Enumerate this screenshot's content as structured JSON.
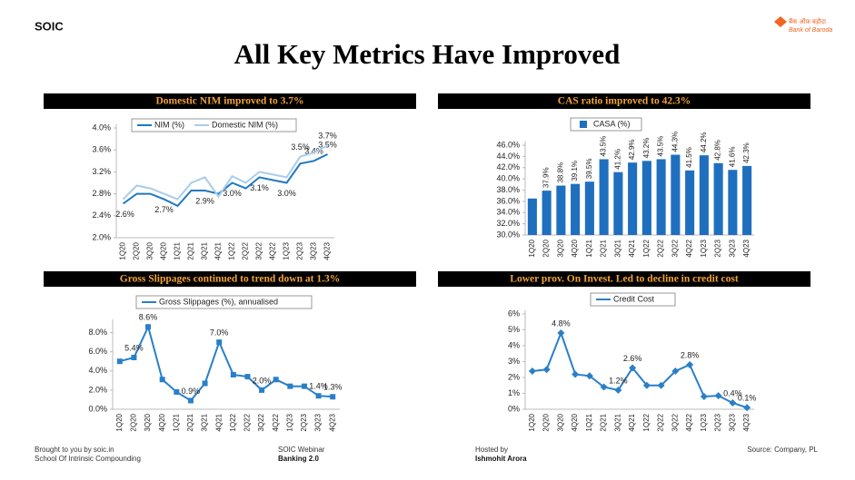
{
  "header": {
    "brand": "SOIC",
    "logo_hindi": "बैंक ऑफ़ बड़ौदा",
    "logo_name": "Bank of Baroda",
    "title": "All Key Metrics Have Improved"
  },
  "footer": {
    "left_1": "Brought to you by soic.in",
    "left_2": "School Of Intrinsic Compounding",
    "mid_1": "SOIC Webinar",
    "mid_2": "Banking 2.0",
    "host_1": "Hosted by",
    "host_2": "Ishmohit Arora",
    "source": "Source: Company, PL"
  },
  "chart_data": [
    {
      "type": "line",
      "title": "Domestic NIM improved to 3.7%",
      "categories": [
        "1Q20",
        "2Q20",
        "3Q20",
        "4Q20",
        "1Q21",
        "2Q21",
        "3Q21",
        "4Q21",
        "1Q22",
        "2Q22",
        "3Q22",
        "4Q22",
        "1Q23",
        "2Q23",
        "3Q23",
        "4Q23"
      ],
      "series": [
        {
          "name": "NIM (%)",
          "color": "#1f78c1",
          "values": [
            2.62,
            2.8,
            2.8,
            2.7,
            2.58,
            2.86,
            2.86,
            2.8,
            3.0,
            2.9,
            3.1,
            3.05,
            3.0,
            3.35,
            3.4,
            3.52
          ],
          "value_labels": [
            "2.6%",
            null,
            null,
            "2.7%",
            null,
            null,
            "2.9%",
            null,
            "3.0%",
            null,
            "3.1%",
            null,
            "3.0%",
            null,
            "3.4%",
            "3.5%"
          ]
        },
        {
          "name": "Domestic NIM (%)",
          "color": "#a9cdea",
          "values": [
            2.7,
            2.95,
            2.9,
            2.8,
            2.7,
            3.0,
            3.1,
            2.75,
            3.12,
            3.0,
            3.2,
            3.15,
            3.1,
            3.48,
            3.55,
            3.68
          ],
          "value_labels": [
            null,
            null,
            null,
            null,
            null,
            null,
            null,
            null,
            null,
            null,
            null,
            null,
            null,
            "3.5%",
            null,
            "3.7%"
          ]
        }
      ],
      "ylim": [
        2.0,
        4.0
      ],
      "yticks": [
        {
          "value": 2.0,
          "label": "2.0%"
        },
        {
          "value": 2.4,
          "label": "2.4%"
        },
        {
          "value": 2.8,
          "label": "2.8%"
        },
        {
          "value": 3.2,
          "label": "3.2%"
        },
        {
          "value": 3.6,
          "label": "3.6%"
        },
        {
          "value": 4.0,
          "label": "4.0%"
        }
      ]
    },
    {
      "type": "bar",
      "title": "CAS ratio improved to 42.3%",
      "categories": [
        "1Q20",
        "2Q20",
        "3Q20",
        "4Q20",
        "1Q21",
        "2Q21",
        "3Q21",
        "4Q21",
        "1Q22",
        "2Q22",
        "3Q22",
        "4Q22",
        "1Q23",
        "2Q23",
        "3Q23",
        "4Q23"
      ],
      "series": [
        {
          "name": "CASA (%)",
          "color": "#1f6fbf",
          "values": [
            36.5,
            37.9,
            38.8,
            39.1,
            39.5,
            43.5,
            41.2,
            42.9,
            43.2,
            43.5,
            44.3,
            41.5,
            44.2,
            42.8,
            41.6,
            42.3
          ],
          "value_labels": [
            null,
            "37.9%",
            "38.8%",
            "39.1%",
            "39.5%",
            "43.5%",
            "41.2%",
            "42.9%",
            "43.2%",
            "43.5%",
            "44.3%",
            "41.5%",
            "44.2%",
            "42.8%",
            "41.6%",
            "42.3%"
          ]
        }
      ],
      "ylim": [
        30,
        46
      ],
      "yticks": [
        {
          "value": 30,
          "label": "30.0%"
        },
        {
          "value": 32,
          "label": "32.0%"
        },
        {
          "value": 34,
          "label": "34.0%"
        },
        {
          "value": 36,
          "label": "36.0%"
        },
        {
          "value": 38,
          "label": "38.0%"
        },
        {
          "value": 40,
          "label": "40.0%"
        },
        {
          "value": 42,
          "label": "42.0%"
        },
        {
          "value": 44,
          "label": "44.0%"
        },
        {
          "value": 46,
          "label": "46.0%"
        }
      ]
    },
    {
      "type": "line",
      "title": "Gross Slippages continued to trend down at 1.3%",
      "categories": [
        "1Q20",
        "2Q20",
        "3Q20",
        "4Q20",
        "1Q21",
        "2Q21",
        "3Q21",
        "4Q21",
        "1Q22",
        "2Q22",
        "3Q22",
        "4Q22",
        "1Q23",
        "2Q23",
        "3Q23",
        "4Q23"
      ],
      "series": [
        {
          "name": "Gross Slippages (%), annualised",
          "color": "#2a7fc9",
          "marker": "square",
          "values": [
            5.0,
            5.4,
            8.6,
            3.1,
            1.8,
            0.9,
            2.7,
            7.0,
            3.6,
            3.4,
            2.0,
            3.1,
            2.4,
            2.4,
            1.4,
            1.3
          ],
          "value_labels": [
            null,
            "5.4%",
            "8.6%",
            null,
            null,
            "0.9%",
            null,
            "7.0%",
            null,
            null,
            "2.0%",
            null,
            null,
            null,
            "1.4%",
            "1.3%"
          ]
        }
      ],
      "ylim": [
        0,
        9
      ],
      "yticks": [
        {
          "value": 0,
          "label": "0.0%"
        },
        {
          "value": 2,
          "label": "2.0%"
        },
        {
          "value": 4,
          "label": "4.0%"
        },
        {
          "value": 6,
          "label": "6.0%"
        },
        {
          "value": 8,
          "label": "8.0%"
        }
      ]
    },
    {
      "type": "line",
      "title": "Lower prov. On Invest. Led to decline in credit cost",
      "categories": [
        "1Q20",
        "2Q20",
        "3Q20",
        "4Q20",
        "1Q21",
        "2Q21",
        "3Q21",
        "4Q21",
        "1Q22",
        "2Q22",
        "3Q22",
        "4Q22",
        "1Q23",
        "2Q23",
        "3Q23",
        "4Q23"
      ],
      "series": [
        {
          "name": "Credit Cost",
          "color": "#2a7fc9",
          "marker": "diamond",
          "values": [
            2.4,
            2.5,
            4.8,
            2.2,
            2.1,
            1.4,
            1.2,
            2.6,
            1.5,
            1.5,
            2.4,
            2.8,
            0.8,
            0.85,
            0.4,
            0.1
          ],
          "value_labels": [
            null,
            null,
            "4.8%",
            null,
            null,
            null,
            "1.2%",
            "2.6%",
            null,
            null,
            null,
            "2.8%",
            null,
            null,
            "0.4%",
            "0.1%"
          ]
        }
      ],
      "ylim": [
        0,
        6
      ],
      "yticks": [
        {
          "value": 0,
          "label": "0%"
        },
        {
          "value": 1,
          "label": "1%"
        },
        {
          "value": 2,
          "label": "2%"
        },
        {
          "value": 3,
          "label": "3%"
        },
        {
          "value": 4,
          "label": "4%"
        },
        {
          "value": 5,
          "label": "5%"
        },
        {
          "value": 6,
          "label": "6%"
        }
      ]
    }
  ]
}
